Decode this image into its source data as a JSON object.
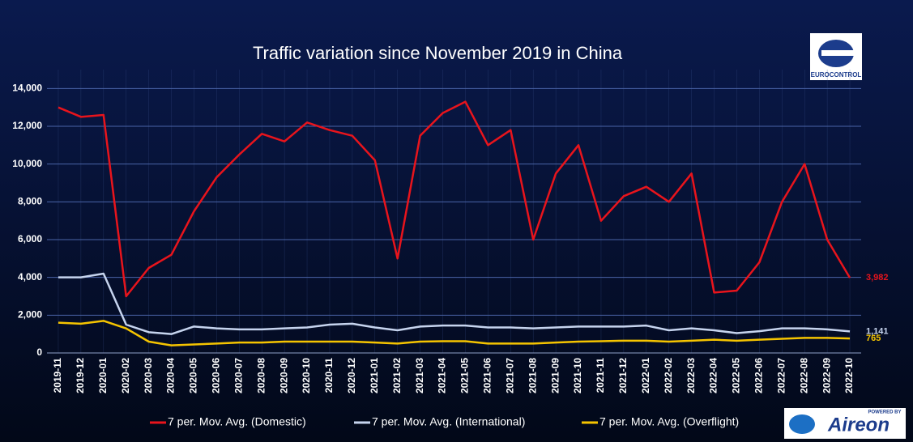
{
  "chart_data": {
    "type": "line",
    "title": "Traffic variation since November 2019 in China",
    "categories": [
      "2019-11",
      "2019-12",
      "2020-01",
      "2020-02",
      "2020-03",
      "2020-04",
      "2020-05",
      "2020-06",
      "2020-07",
      "2020-08",
      "2020-09",
      "2020-10",
      "2020-11",
      "2020-12",
      "2021-01",
      "2021-02",
      "2021-03",
      "2021-04",
      "2021-05",
      "2021-06",
      "2021-07",
      "2021-08",
      "2021-09",
      "2021-10",
      "2021-11",
      "2021-12",
      "2022-01",
      "2022-02",
      "2022-03",
      "2022-04",
      "2022-05",
      "2022-06",
      "2022-07",
      "2022-08",
      "2022-09",
      "2022-10"
    ],
    "series": [
      {
        "name": "7 per. Mov. Avg. (Domestic)",
        "color": "#e8141c",
        "values": [
          13000,
          12500,
          12600,
          3000,
          4500,
          5200,
          7500,
          9300,
          10500,
          11600,
          11200,
          12200,
          11800,
          11500,
          10200,
          5000,
          11500,
          12700,
          13300,
          11000,
          11800,
          6000,
          9500,
          11000,
          7000,
          8300,
          8800,
          8000,
          9500,
          3200,
          3300,
          4800,
          8000,
          10000,
          6000,
          3982
        ],
        "value_labels": [
          null,
          null,
          null,
          null,
          null,
          null,
          null,
          null,
          null,
          null,
          null,
          null,
          null,
          null,
          null,
          null,
          null,
          null,
          null,
          null,
          null,
          null,
          null,
          null,
          null,
          null,
          null,
          null,
          null,
          null,
          null,
          null,
          null,
          null,
          null,
          "3,982"
        ]
      },
      {
        "name": "7 per. Mov. Avg. (International)",
        "color": "#c6d4ee",
        "values": [
          4000,
          4000,
          4200,
          1500,
          1100,
          1000,
          1400,
          1300,
          1250,
          1250,
          1300,
          1350,
          1500,
          1550,
          1350,
          1200,
          1400,
          1450,
          1450,
          1350,
          1350,
          1300,
          1350,
          1400,
          1400,
          1400,
          1450,
          1200,
          1300,
          1200,
          1050,
          1150,
          1300,
          1300,
          1250,
          1141
        ],
        "value_labels": [
          null,
          null,
          null,
          null,
          null,
          null,
          null,
          null,
          null,
          null,
          null,
          null,
          null,
          null,
          null,
          null,
          null,
          null,
          null,
          null,
          null,
          null,
          null,
          null,
          null,
          null,
          null,
          null,
          null,
          null,
          null,
          null,
          null,
          null,
          null,
          "1,141"
        ]
      },
      {
        "name": "7 per. Mov. Avg. (Overflight)",
        "color": "#f5c400",
        "values": [
          1600,
          1550,
          1700,
          1300,
          600,
          400,
          450,
          500,
          550,
          550,
          600,
          600,
          600,
          600,
          550,
          500,
          600,
          620,
          620,
          500,
          500,
          500,
          550,
          600,
          620,
          650,
          650,
          600,
          650,
          700,
          650,
          700,
          750,
          800,
          800,
          765
        ],
        "value_labels": [
          null,
          null,
          null,
          null,
          null,
          null,
          null,
          null,
          null,
          null,
          null,
          null,
          null,
          null,
          null,
          null,
          null,
          null,
          null,
          null,
          null,
          null,
          null,
          null,
          null,
          null,
          null,
          null,
          null,
          null,
          null,
          null,
          null,
          null,
          null,
          "765"
        ]
      }
    ],
    "ylim": [
      0,
      15000
    ],
    "yticks": [
      0,
      {
        "value": 2000,
        "label": "2,000"
      },
      {
        "value": 4000,
        "label": "4,000"
      },
      {
        "value": 6000,
        "label": "6,000"
      },
      {
        "value": 8000,
        "label": "8,000"
      },
      {
        "value": 10000,
        "label": "10,000"
      },
      {
        "value": 12000,
        "label": "12,000"
      },
      {
        "value": 14000,
        "label": "14,000"
      }
    ],
    "grid": true,
    "legend": "bottom"
  },
  "logos": {
    "top": "EUROCONTROL",
    "bottom_small": "POWERED BY",
    "bottom": "Aireon"
  }
}
